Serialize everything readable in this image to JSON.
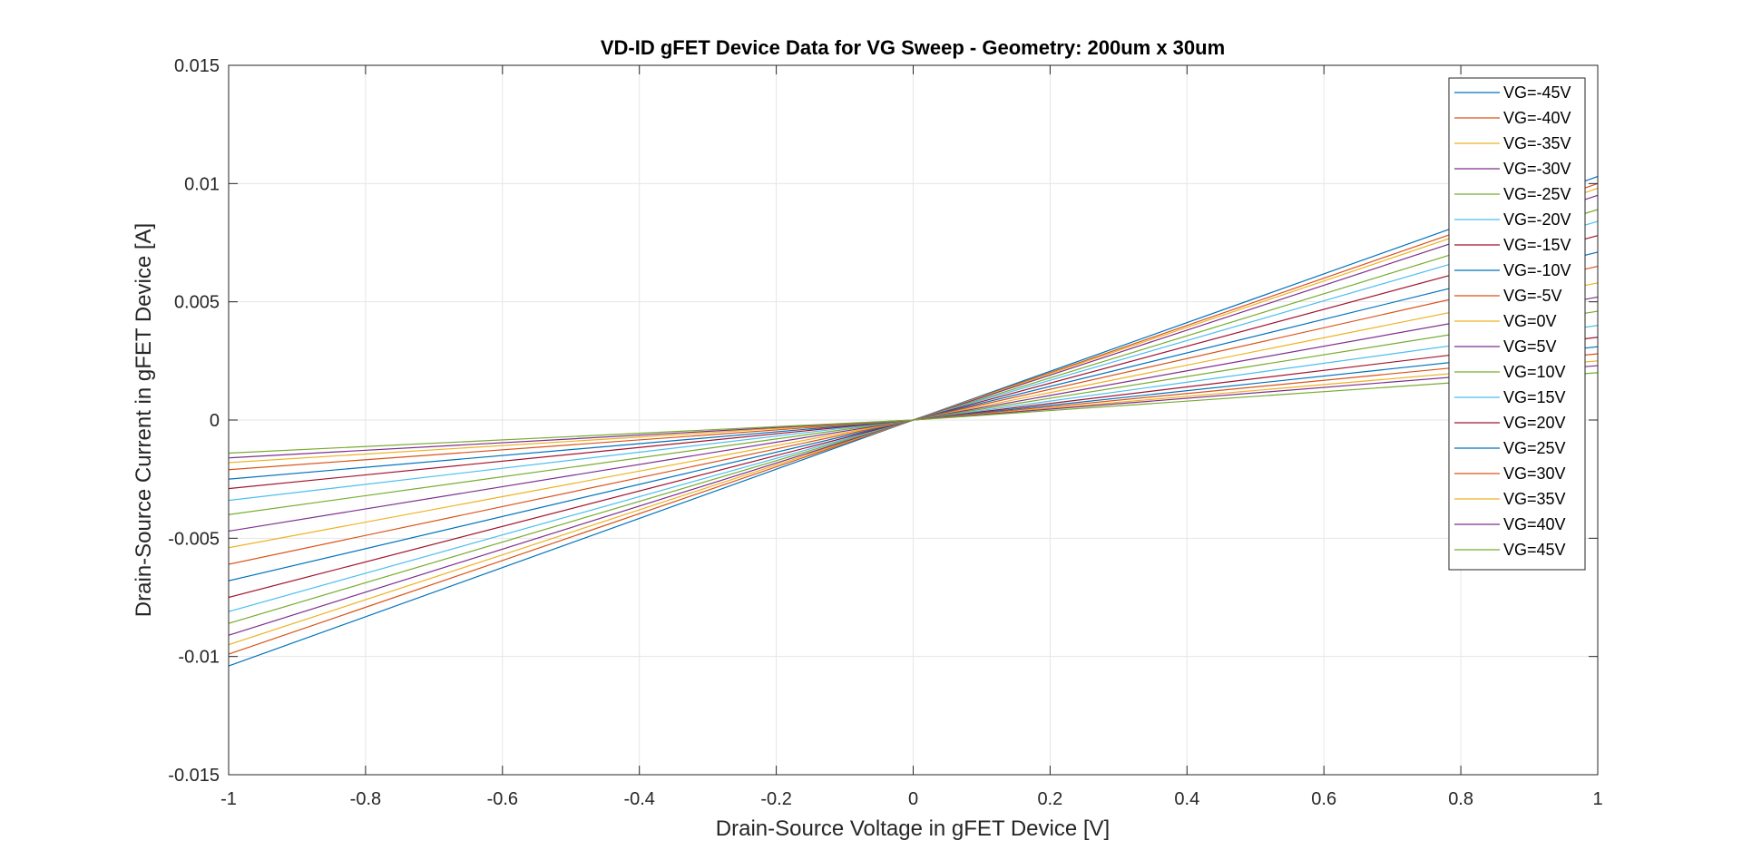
{
  "chart_data": {
    "type": "line",
    "title": "VD-ID gFET Device Data for VG Sweep - Geometry: 200um x 30um",
    "xlabel": "Drain-Source Voltage in gFET Device [V]",
    "ylabel": "Drain-Source Current in gFET Device [A]",
    "xlim": [
      -1,
      1
    ],
    "ylim": [
      -0.015,
      0.015
    ],
    "xticks": [
      -1,
      -0.8,
      -0.6,
      -0.4,
      -0.2,
      0,
      0.2,
      0.4,
      0.6,
      0.8,
      1
    ],
    "xtick_labels": [
      "-1",
      "-0.8",
      "-0.6",
      "-0.4",
      "-0.2",
      "0",
      "0.2",
      "0.4",
      "0.6",
      "0.8",
      "1"
    ],
    "yticks": [
      -0.015,
      -0.01,
      -0.005,
      0,
      0.005,
      0.01,
      0.015
    ],
    "ytick_labels": [
      "-0.015",
      "-0.01",
      "-0.005",
      "0",
      "0.005",
      "0.01",
      "0.015"
    ],
    "grid": true,
    "legend_position": "top-right",
    "x": [
      -1,
      1
    ],
    "series": [
      {
        "name": "VG=-45V",
        "color": "#0072BD",
        "values": [
          -0.0104,
          0.0103
        ]
      },
      {
        "name": "VG=-40V",
        "color": "#D95319",
        "values": [
          -0.0099,
          0.01
        ]
      },
      {
        "name": "VG=-35V",
        "color": "#EDB120",
        "values": [
          -0.0095,
          0.0098
        ]
      },
      {
        "name": "VG=-30V",
        "color": "#7E2F8E",
        "values": [
          -0.0091,
          0.0095
        ]
      },
      {
        "name": "VG=-25V",
        "color": "#77AC30",
        "values": [
          -0.0086,
          0.0089
        ]
      },
      {
        "name": "VG=-20V",
        "color": "#4DBEEE",
        "values": [
          -0.0081,
          0.0084
        ]
      },
      {
        "name": "VG=-15V",
        "color": "#A2142F",
        "values": [
          -0.0075,
          0.0078
        ]
      },
      {
        "name": "VG=-10V",
        "color": "#0072BD",
        "values": [
          -0.0068,
          0.0071
        ]
      },
      {
        "name": "VG=-5V",
        "color": "#D95319",
        "values": [
          -0.0061,
          0.0065
        ]
      },
      {
        "name": "VG=0V",
        "color": "#EDB120",
        "values": [
          -0.0054,
          0.0058
        ]
      },
      {
        "name": "VG=5V",
        "color": "#7E2F8E",
        "values": [
          -0.0047,
          0.0052
        ]
      },
      {
        "name": "VG=10V",
        "color": "#77AC30",
        "values": [
          -0.004,
          0.0046
        ]
      },
      {
        "name": "VG=15V",
        "color": "#4DBEEE",
        "values": [
          -0.0034,
          0.004
        ]
      },
      {
        "name": "VG=20V",
        "color": "#A2142F",
        "values": [
          -0.0029,
          0.0035
        ]
      },
      {
        "name": "VG=25V",
        "color": "#0072BD",
        "values": [
          -0.0025,
          0.0031
        ]
      },
      {
        "name": "VG=30V",
        "color": "#D95319",
        "values": [
          -0.0021,
          0.0028
        ]
      },
      {
        "name": "VG=35V",
        "color": "#EDB120",
        "values": [
          -0.0018,
          0.0025
        ]
      },
      {
        "name": "VG=40V",
        "color": "#7E2F8E",
        "values": [
          -0.0016,
          0.0023
        ]
      },
      {
        "name": "VG=45V",
        "color": "#77AC30",
        "values": [
          -0.0014,
          0.002
        ]
      }
    ]
  }
}
